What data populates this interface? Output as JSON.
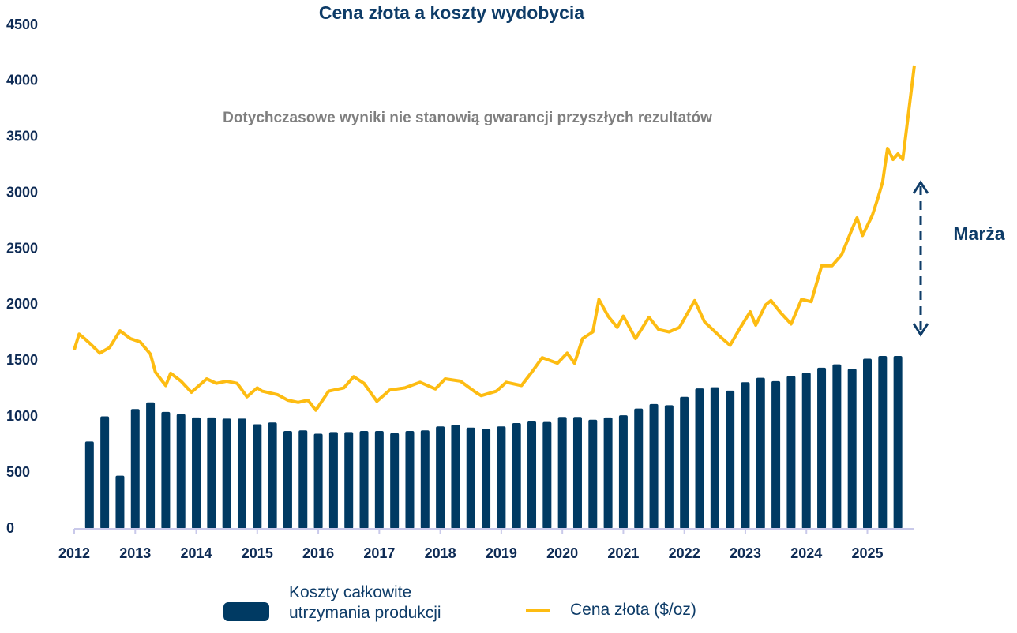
{
  "chart_data": {
    "type": "bar",
    "title": "Cena złota a koszty wydobycia",
    "annotations": [
      "Dotychczasowe wyniki nie stanowią gwarancji przyszłych rezultatów",
      "Marża"
    ],
    "xlim": [
      2012,
      2025.77
    ],
    "xticks": [
      2012,
      2013,
      2014,
      2015,
      2016,
      2017,
      2018,
      2019,
      2020,
      2021,
      2022,
      2023,
      2024,
      2025
    ],
    "ylim": [
      0,
      4500
    ],
    "yticks": [
      0,
      500,
      1000,
      1500,
      2000,
      2500,
      3000,
      3500,
      4000,
      4500
    ],
    "series": [
      {
        "name": "Koszty całkowite utrzymania produkcji",
        "type": "bar",
        "color": "#003a63",
        "x": [
          2012.25,
          2012.5,
          2012.75,
          2013,
          2013.25,
          2013.5,
          2013.75,
          2014,
          2014.25,
          2014.5,
          2014.75,
          2015,
          2015.25,
          2015.5,
          2015.75,
          2016,
          2016.25,
          2016.5,
          2016.75,
          2017,
          2017.25,
          2017.5,
          2017.75,
          2018,
          2018.25,
          2018.5,
          2018.75,
          2019,
          2019.25,
          2019.5,
          2019.75,
          2020,
          2020.25,
          2020.5,
          2020.75,
          2021,
          2021.25,
          2021.5,
          2021.75,
          2022,
          2022.25,
          2022.5,
          2022.75,
          2023,
          2023.25,
          2023.5,
          2023.75,
          2024,
          2024.25,
          2024.5,
          2024.75,
          2025,
          2025.25,
          2025.5
        ],
        "values": [
          780,
          1005,
          475,
          1070,
          1130,
          1045,
          1025,
          995,
          995,
          985,
          985,
          935,
          950,
          875,
          880,
          850,
          865,
          865,
          875,
          875,
          855,
          875,
          880,
          915,
          930,
          905,
          895,
          915,
          945,
          960,
          955,
          1000,
          1000,
          975,
          995,
          1015,
          1075,
          1115,
          1105,
          1180,
          1255,
          1265,
          1235,
          1310,
          1350,
          1320,
          1365,
          1395,
          1440,
          1470,
          1430,
          1520,
          1545,
          1545
        ]
      },
      {
        "name": "Cena złota ($/oz)",
        "type": "line",
        "color": "#fdbc12",
        "x": [
          2012.0,
          2012.08,
          2012.17,
          2012.25,
          2012.42,
          2012.58,
          2012.75,
          2012.92,
          2013.08,
          2013.25,
          2013.33,
          2013.5,
          2013.58,
          2013.75,
          2013.92,
          2014.17,
          2014.33,
          2014.5,
          2014.67,
          2014.83,
          2015.0,
          2015.08,
          2015.33,
          2015.5,
          2015.67,
          2015.83,
          2015.96,
          2016.17,
          2016.42,
          2016.58,
          2016.75,
          2016.96,
          2017.17,
          2017.42,
          2017.67,
          2017.92,
          2018.08,
          2018.33,
          2018.58,
          2018.67,
          2018.92,
          2019.08,
          2019.33,
          2019.5,
          2019.67,
          2019.92,
          2020.08,
          2020.2,
          2020.33,
          2020.5,
          2020.6,
          2020.75,
          2020.9,
          2021.0,
          2021.2,
          2021.42,
          2021.58,
          2021.75,
          2021.92,
          2022.17,
          2022.33,
          2022.58,
          2022.75,
          2022.92,
          2023.08,
          2023.17,
          2023.33,
          2023.42,
          2023.58,
          2023.75,
          2023.92,
          2024.08,
          2024.25,
          2024.42,
          2024.58,
          2024.75,
          2024.83,
          2024.92,
          2025.08,
          2025.17,
          2025.25,
          2025.33,
          2025.42,
          2025.5,
          2025.58,
          2025.67,
          2025.77
        ],
        "values": [
          1600,
          1740,
          1700,
          1660,
          1570,
          1620,
          1770,
          1700,
          1670,
          1560,
          1400,
          1280,
          1390,
          1320,
          1220,
          1340,
          1300,
          1320,
          1300,
          1180,
          1260,
          1230,
          1200,
          1150,
          1130,
          1150,
          1060,
          1230,
          1260,
          1360,
          1300,
          1140,
          1240,
          1260,
          1310,
          1250,
          1340,
          1320,
          1220,
          1190,
          1230,
          1310,
          1280,
          1400,
          1530,
          1480,
          1570,
          1480,
          1700,
          1760,
          2050,
          1900,
          1800,
          1900,
          1700,
          1890,
          1780,
          1760,
          1800,
          2040,
          1850,
          1720,
          1640,
          1800,
          1940,
          1820,
          2000,
          2040,
          1930,
          1830,
          2050,
          2030,
          2350,
          2350,
          2450,
          2680,
          2780,
          2620,
          2800,
          2950,
          3100,
          3400,
          3300,
          3350,
          3300,
          3700,
          4140
        ]
      }
    ]
  }
}
